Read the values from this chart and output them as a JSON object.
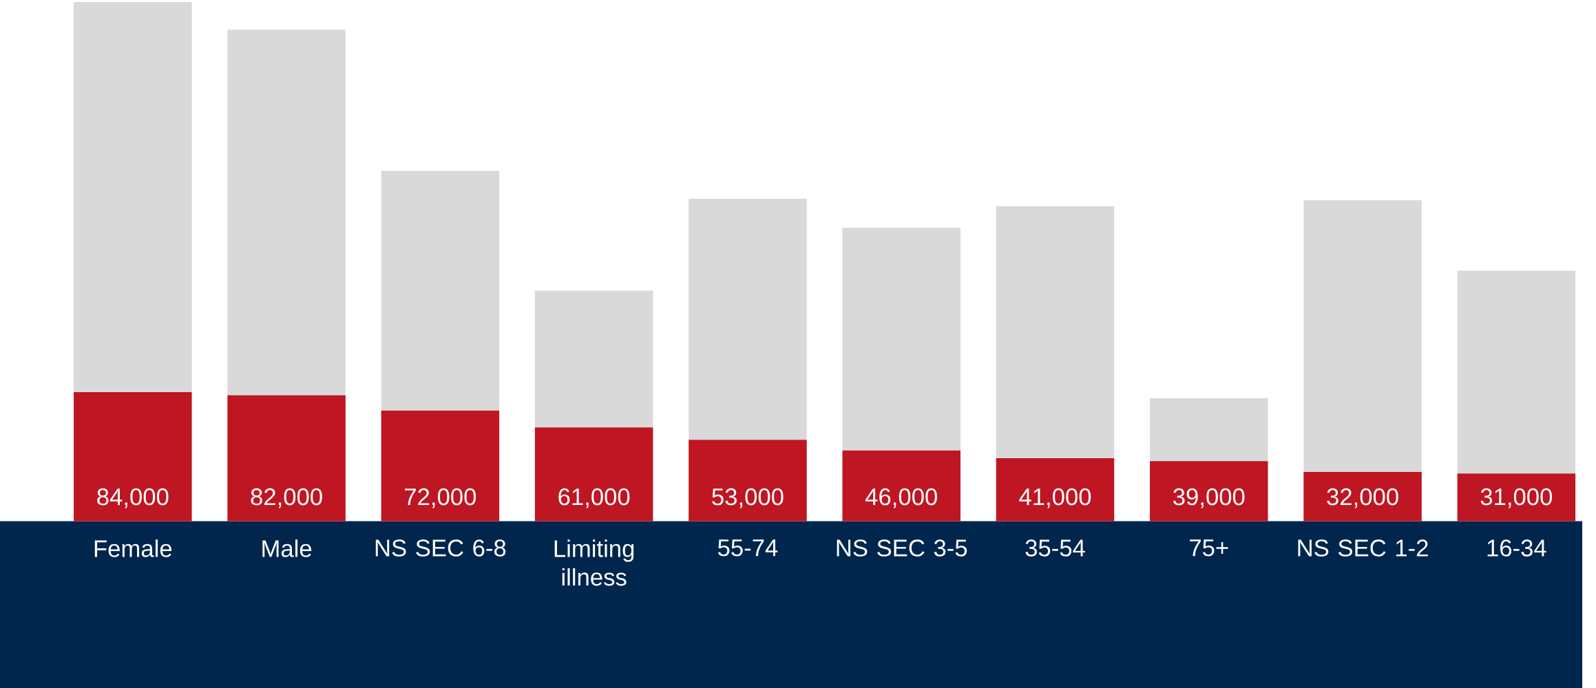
{
  "chart_data": {
    "type": "bar",
    "stacked": true,
    "categories": [
      "Female",
      "Male",
      "NS SEC 6-8",
      "Limiting illness",
      "55-74",
      "NS SEC 3-5",
      "35-54",
      "75+",
      "NS SEC 1-2",
      "16-34"
    ],
    "series": [
      {
        "color": "#be1622",
        "values": [
          84000,
          82000,
          72000,
          61000,
          53000,
          46000,
          41000,
          39000,
          32000,
          31000
        ],
        "value_labels": [
          "84,000",
          "82,000",
          "72,000",
          "61,000",
          "53,000",
          "46,000",
          "41,000",
          "39,000",
          "32,000",
          "31,000"
        ]
      },
      {
        "color": "#d9d9d9",
        "values": [
          254000,
          238000,
          156000,
          89000,
          157000,
          145000,
          164000,
          41000,
          177000,
          132000
        ]
      }
    ]
  }
}
